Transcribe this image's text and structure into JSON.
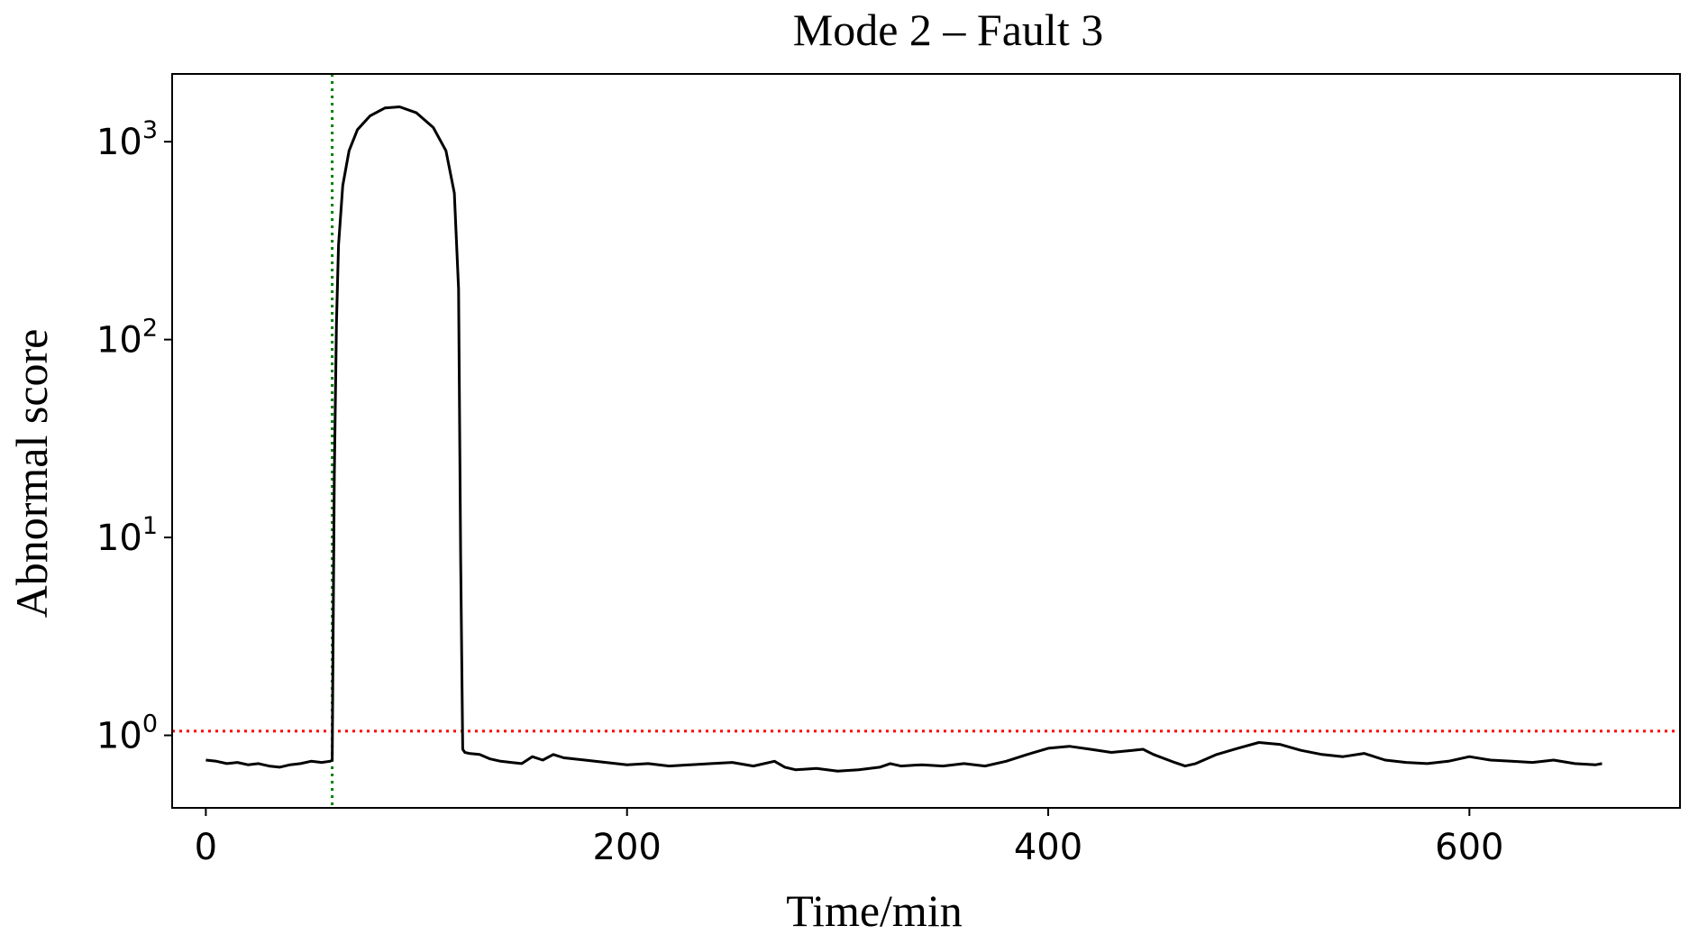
{
  "chart_data": {
    "type": "line",
    "title": "Mode 2 – Fault 3",
    "xlabel": "Time/min",
    "ylabel": "Abnormal score",
    "xlim": [
      -16,
      700
    ],
    "ylim": [
      0.43,
      2200
    ],
    "yscale": "log",
    "grid": false,
    "x_ticks": [
      0,
      200,
      400,
      600
    ],
    "y_ticks": [
      {
        "value": 1,
        "base": "10",
        "exp": "0"
      },
      {
        "value": 10,
        "base": "10",
        "exp": "1"
      },
      {
        "value": 100,
        "base": "10",
        "exp": "2"
      },
      {
        "value": 1000,
        "base": "10",
        "exp": "3"
      }
    ],
    "threshold": {
      "y": 1.05,
      "color": "#ff0000"
    },
    "fault_onset": {
      "x": 60,
      "color": "#008000"
    },
    "series": [
      {
        "color": "#000000",
        "x": [
          0,
          5,
          10,
          15,
          20,
          25,
          30,
          35,
          40,
          45,
          50,
          55,
          59,
          60,
          61,
          62,
          63,
          65,
          68,
          72,
          78,
          85,
          92,
          100,
          108,
          114,
          118,
          120,
          121,
          122,
          123,
          125,
          130,
          135,
          140,
          145,
          150,
          155,
          160,
          165,
          170,
          175,
          180,
          190,
          200,
          210,
          220,
          230,
          240,
          250,
          260,
          270,
          275,
          280,
          290,
          300,
          310,
          320,
          325,
          330,
          340,
          350,
          360,
          370,
          380,
          390,
          400,
          410,
          420,
          430,
          440,
          445,
          450,
          460,
          465,
          470,
          480,
          490,
          500,
          510,
          520,
          530,
          540,
          550,
          560,
          570,
          580,
          590,
          600,
          610,
          620,
          630,
          640,
          650,
          660,
          663
        ],
        "y": [
          0.75,
          0.74,
          0.72,
          0.73,
          0.71,
          0.72,
          0.7,
          0.69,
          0.71,
          0.72,
          0.74,
          0.73,
          0.74,
          0.75,
          20,
          120,
          300,
          600,
          900,
          1150,
          1350,
          1480,
          1500,
          1400,
          1180,
          900,
          550,
          180,
          8,
          0.85,
          0.82,
          0.81,
          0.8,
          0.76,
          0.74,
          0.73,
          0.72,
          0.78,
          0.75,
          0.8,
          0.77,
          0.76,
          0.75,
          0.73,
          0.71,
          0.72,
          0.7,
          0.71,
          0.72,
          0.73,
          0.7,
          0.74,
          0.69,
          0.67,
          0.68,
          0.66,
          0.67,
          0.69,
          0.72,
          0.7,
          0.71,
          0.7,
          0.72,
          0.7,
          0.74,
          0.8,
          0.86,
          0.88,
          0.85,
          0.82,
          0.84,
          0.85,
          0.8,
          0.73,
          0.7,
          0.72,
          0.8,
          0.86,
          0.92,
          0.9,
          0.84,
          0.8,
          0.78,
          0.81,
          0.75,
          0.73,
          0.72,
          0.74,
          0.78,
          0.75,
          0.74,
          0.73,
          0.75,
          0.72,
          0.71,
          0.72
        ]
      }
    ]
  }
}
